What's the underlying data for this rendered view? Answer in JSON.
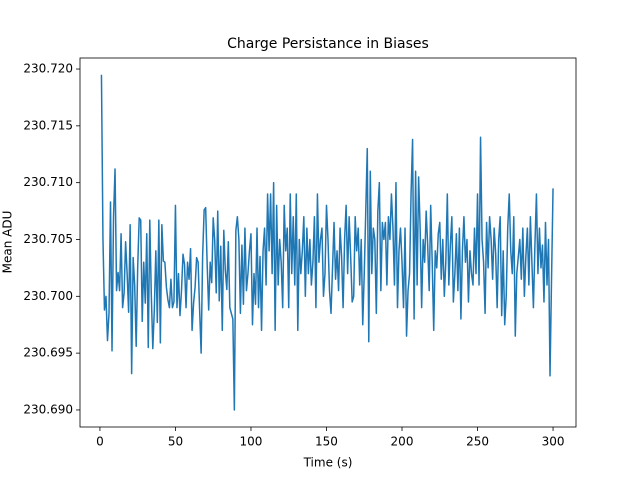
{
  "chart_data": {
    "type": "line",
    "title": "Charge Persistance in Biases",
    "x_label": "Time (s)",
    "y_label": "Mean ADU",
    "xlim": [
      -13.2,
      315.2
    ],
    "xticks": [
      0,
      50,
      100,
      150,
      200,
      250,
      300
    ],
    "ylim": [
      230.6885,
      230.72097
    ],
    "yticks": [
      {
        "value": 230.69,
        "label": "230.690"
      },
      230.695,
      {
        "value": 230.7,
        "label": "230.700"
      },
      230.705,
      {
        "value": 230.71,
        "label": "230.710"
      },
      230.715,
      {
        "value": 230.72,
        "label": "230.720"
      }
    ],
    "grid": false,
    "x": [
      1,
      2,
      3,
      4,
      5,
      6,
      7,
      8,
      9,
      10,
      11,
      12,
      13,
      14,
      15,
      16,
      17,
      18,
      19,
      20,
      21,
      22,
      23,
      24,
      25,
      26,
      27,
      28,
      29,
      30,
      31,
      32,
      33,
      34,
      35,
      36,
      37,
      38,
      39,
      40,
      41,
      42,
      43,
      44,
      45,
      46,
      47,
      48,
      49,
      50,
      51,
      52,
      53,
      54,
      55,
      56,
      57,
      58,
      59,
      60,
      61,
      62,
      63,
      64,
      65,
      66,
      67,
      68,
      69,
      70,
      71,
      72,
      73,
      74,
      75,
      76,
      77,
      78,
      79,
      80,
      81,
      82,
      83,
      84,
      85,
      86,
      87,
      88,
      89,
      90,
      91,
      92,
      93,
      94,
      95,
      96,
      97,
      98,
      99,
      100,
      101,
      102,
      103,
      104,
      105,
      106,
      107,
      108,
      109,
      110,
      111,
      112,
      113,
      114,
      115,
      116,
      117,
      118,
      119,
      120,
      121,
      122,
      123,
      124,
      125,
      126,
      127,
      128,
      129,
      130,
      131,
      132,
      133,
      134,
      135,
      136,
      137,
      138,
      139,
      140,
      141,
      142,
      143,
      144,
      145,
      146,
      147,
      148,
      149,
      150,
      151,
      152,
      153,
      154,
      155,
      156,
      157,
      158,
      159,
      160,
      161,
      162,
      163,
      164,
      165,
      166,
      167,
      168,
      169,
      170,
      171,
      172,
      173,
      174,
      175,
      176,
      177,
      178,
      179,
      180,
      181,
      182,
      183,
      184,
      185,
      186,
      187,
      188,
      189,
      190,
      191,
      192,
      193,
      194,
      195,
      196,
      197,
      198,
      199,
      200,
      201,
      202,
      203,
      204,
      205,
      206,
      207,
      208,
      209,
      210,
      211,
      212,
      213,
      214,
      215,
      216,
      217,
      218,
      219,
      220,
      221,
      222,
      223,
      224,
      225,
      226,
      227,
      228,
      229,
      230,
      231,
      232,
      233,
      234,
      235,
      236,
      237,
      238,
      239,
      240,
      241,
      242,
      243,
      244,
      245,
      246,
      247,
      248,
      249,
      250,
      251,
      252,
      253,
      254,
      255,
      256,
      257,
      258,
      259,
      260,
      261,
      262,
      263,
      264,
      265,
      266,
      267,
      268,
      269,
      270,
      271,
      272,
      273,
      274,
      275,
      276,
      277,
      278,
      279,
      280,
      281,
      282,
      283,
      284,
      285,
      286,
      287,
      288,
      289,
      290,
      291,
      292,
      293,
      294,
      295,
      296,
      297,
      298,
      299,
      300
    ],
    "series": [
      {
        "color": "#1f77b4",
        "values": [
          230.7195,
          230.705,
          230.6988,
          230.7,
          230.6961,
          230.6985,
          230.7083,
          230.6952,
          230.707,
          230.7112,
          230.7005,
          230.7021,
          230.7005,
          230.7055,
          230.699,
          230.7003,
          230.7048,
          230.702,
          230.6986,
          230.7063,
          230.6932,
          230.7034,
          230.701,
          230.6956,
          230.7026,
          230.7069,
          230.7067,
          230.6978,
          230.703,
          230.6994,
          230.7055,
          230.6955,
          230.7067,
          230.7002,
          230.6954,
          230.6988,
          230.704,
          230.6977,
          230.7067,
          230.6959,
          230.7063,
          230.7031,
          230.703,
          230.7008,
          230.6997,
          230.699,
          230.7015,
          230.699,
          230.6995,
          230.708,
          230.699,
          230.702,
          230.6983,
          230.7005,
          230.7037,
          230.7028,
          230.699,
          230.703,
          230.7015,
          230.7042,
          230.697,
          230.6994,
          230.7008,
          230.7034,
          230.703,
          230.6988,
          230.695,
          230.7036,
          230.7076,
          230.7078,
          230.7028,
          230.6988,
          230.703,
          230.7012,
          230.7069,
          230.7049,
          230.7003,
          230.7075,
          230.6996,
          230.7044,
          230.697,
          230.7058,
          230.7023,
          230.7006,
          230.7048,
          230.699,
          230.6985,
          230.698,
          230.69,
          230.7058,
          230.707,
          230.705,
          230.6985,
          230.7045,
          230.6993,
          230.706,
          230.7005,
          230.702,
          230.704,
          230.7055,
          230.6975,
          230.702,
          230.6993,
          230.706,
          230.699,
          230.7035,
          230.697,
          230.704,
          230.706,
          230.701,
          230.709,
          230.704,
          230.709,
          230.702,
          230.71,
          230.697,
          230.708,
          230.701,
          230.705,
          230.703,
          230.699,
          230.708,
          230.704,
          230.706,
          230.699,
          230.709,
          230.702,
          230.707,
          230.701,
          230.709,
          230.697,
          230.705,
          230.702,
          230.704,
          230.707,
          230.7,
          230.706,
          230.702,
          230.705,
          230.701,
          230.703,
          230.707,
          230.699,
          230.709,
          230.703,
          230.705,
          230.706,
          230.7,
          230.702,
          230.708,
          230.705,
          230.7005,
          230.6985,
          230.7025,
          230.7065,
          230.7015,
          230.704,
          230.7005,
          230.706,
          230.7035,
          230.699,
          230.705,
          230.708,
          230.702,
          230.707,
          230.7035,
          230.6995,
          230.7,
          230.707,
          230.704,
          230.706,
          230.701,
          230.705,
          230.6975,
          230.702,
          230.7075,
          230.713,
          230.696,
          230.711,
          230.702,
          230.706,
          230.705,
          230.6985,
          230.7075,
          230.71,
          230.7005,
          230.7065,
          230.705,
          230.7065,
          230.701,
          230.707,
          230.705,
          230.709,
          230.706,
          230.701,
          230.71,
          230.699,
          230.704,
          230.706,
          230.703,
          230.699,
          230.706,
          230.6965,
          230.7005,
          230.702,
          230.709,
          230.7138,
          230.698,
          230.711,
          230.701,
          230.7105,
          230.706,
          230.699,
          230.705,
          230.703,
          230.7075,
          230.7045,
          230.7005,
          230.708,
          230.703,
          230.697,
          230.704,
          230.7025,
          230.7055,
          230.7065,
          230.7015,
          230.705,
          230.7,
          230.703,
          230.709,
          230.701,
          230.7045,
          230.707,
          230.6995,
          230.702,
          230.7055,
          230.7005,
          230.706,
          230.698,
          230.704,
          230.707,
          230.703,
          230.705,
          230.6995,
          230.704,
          230.702,
          230.701,
          230.706,
          230.702,
          230.709,
          230.701,
          230.714,
          230.705,
          230.703,
          230.6985,
          230.7065,
          230.7025,
          230.707,
          230.705,
          230.7015,
          230.706,
          230.7038,
          230.699,
          230.705,
          230.707,
          230.6983,
          230.704,
          230.6975,
          230.7,
          230.706,
          230.709,
          230.704,
          230.702,
          230.707,
          230.6965,
          230.702,
          230.7035,
          230.705,
          230.7015,
          230.706,
          230.7,
          230.7035,
          230.706,
          230.701,
          230.707,
          230.703,
          230.699,
          230.7045,
          230.709,
          230.702,
          230.706,
          230.7025,
          230.7045,
          230.6995,
          230.7065,
          230.701,
          230.705,
          230.693,
          230.7015,
          230.7095
        ]
      }
    ]
  }
}
